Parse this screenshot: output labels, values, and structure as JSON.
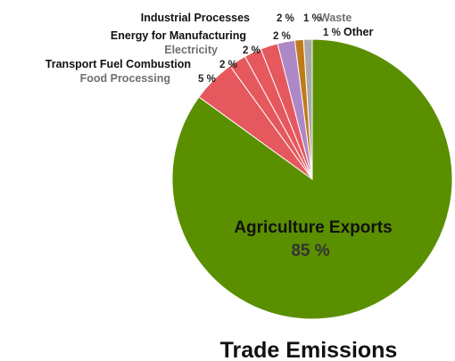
{
  "chart_data": {
    "type": "pie",
    "title": "Trade Emissions",
    "slices": [
      {
        "name": "Agriculture Exports",
        "value": 85,
        "label": "85 %",
        "color": "#5a8f00",
        "label_color": "#111111"
      },
      {
        "name": "Food Processing",
        "value": 5,
        "label": "5 %",
        "color": "#e5585d",
        "label_color": "#707070"
      },
      {
        "name": "Transport Fuel Combustion",
        "value": 2,
        "label": "2 %",
        "color": "#e5585d",
        "label_color": "#111111"
      },
      {
        "name": "Electricity",
        "value": 2,
        "label": "2 %",
        "color": "#e5585d",
        "label_color": "#707070"
      },
      {
        "name": "Energy for Manufacturing",
        "value": 2,
        "label": "2 %",
        "color": "#e5585d",
        "label_color": "#111111"
      },
      {
        "name": "Industrial Processes",
        "value": 2,
        "label": "2 %",
        "color": "#ae88c6",
        "label_color": "#111111"
      },
      {
        "name": "Waste",
        "value": 1,
        "label": "1 %",
        "color": "#c07a1a",
        "label_color": "#707070"
      },
      {
        "name": "Other",
        "value": 1,
        "label": "1 %",
        "color": "#a9a9a9",
        "label_color": "#111111"
      }
    ]
  }
}
